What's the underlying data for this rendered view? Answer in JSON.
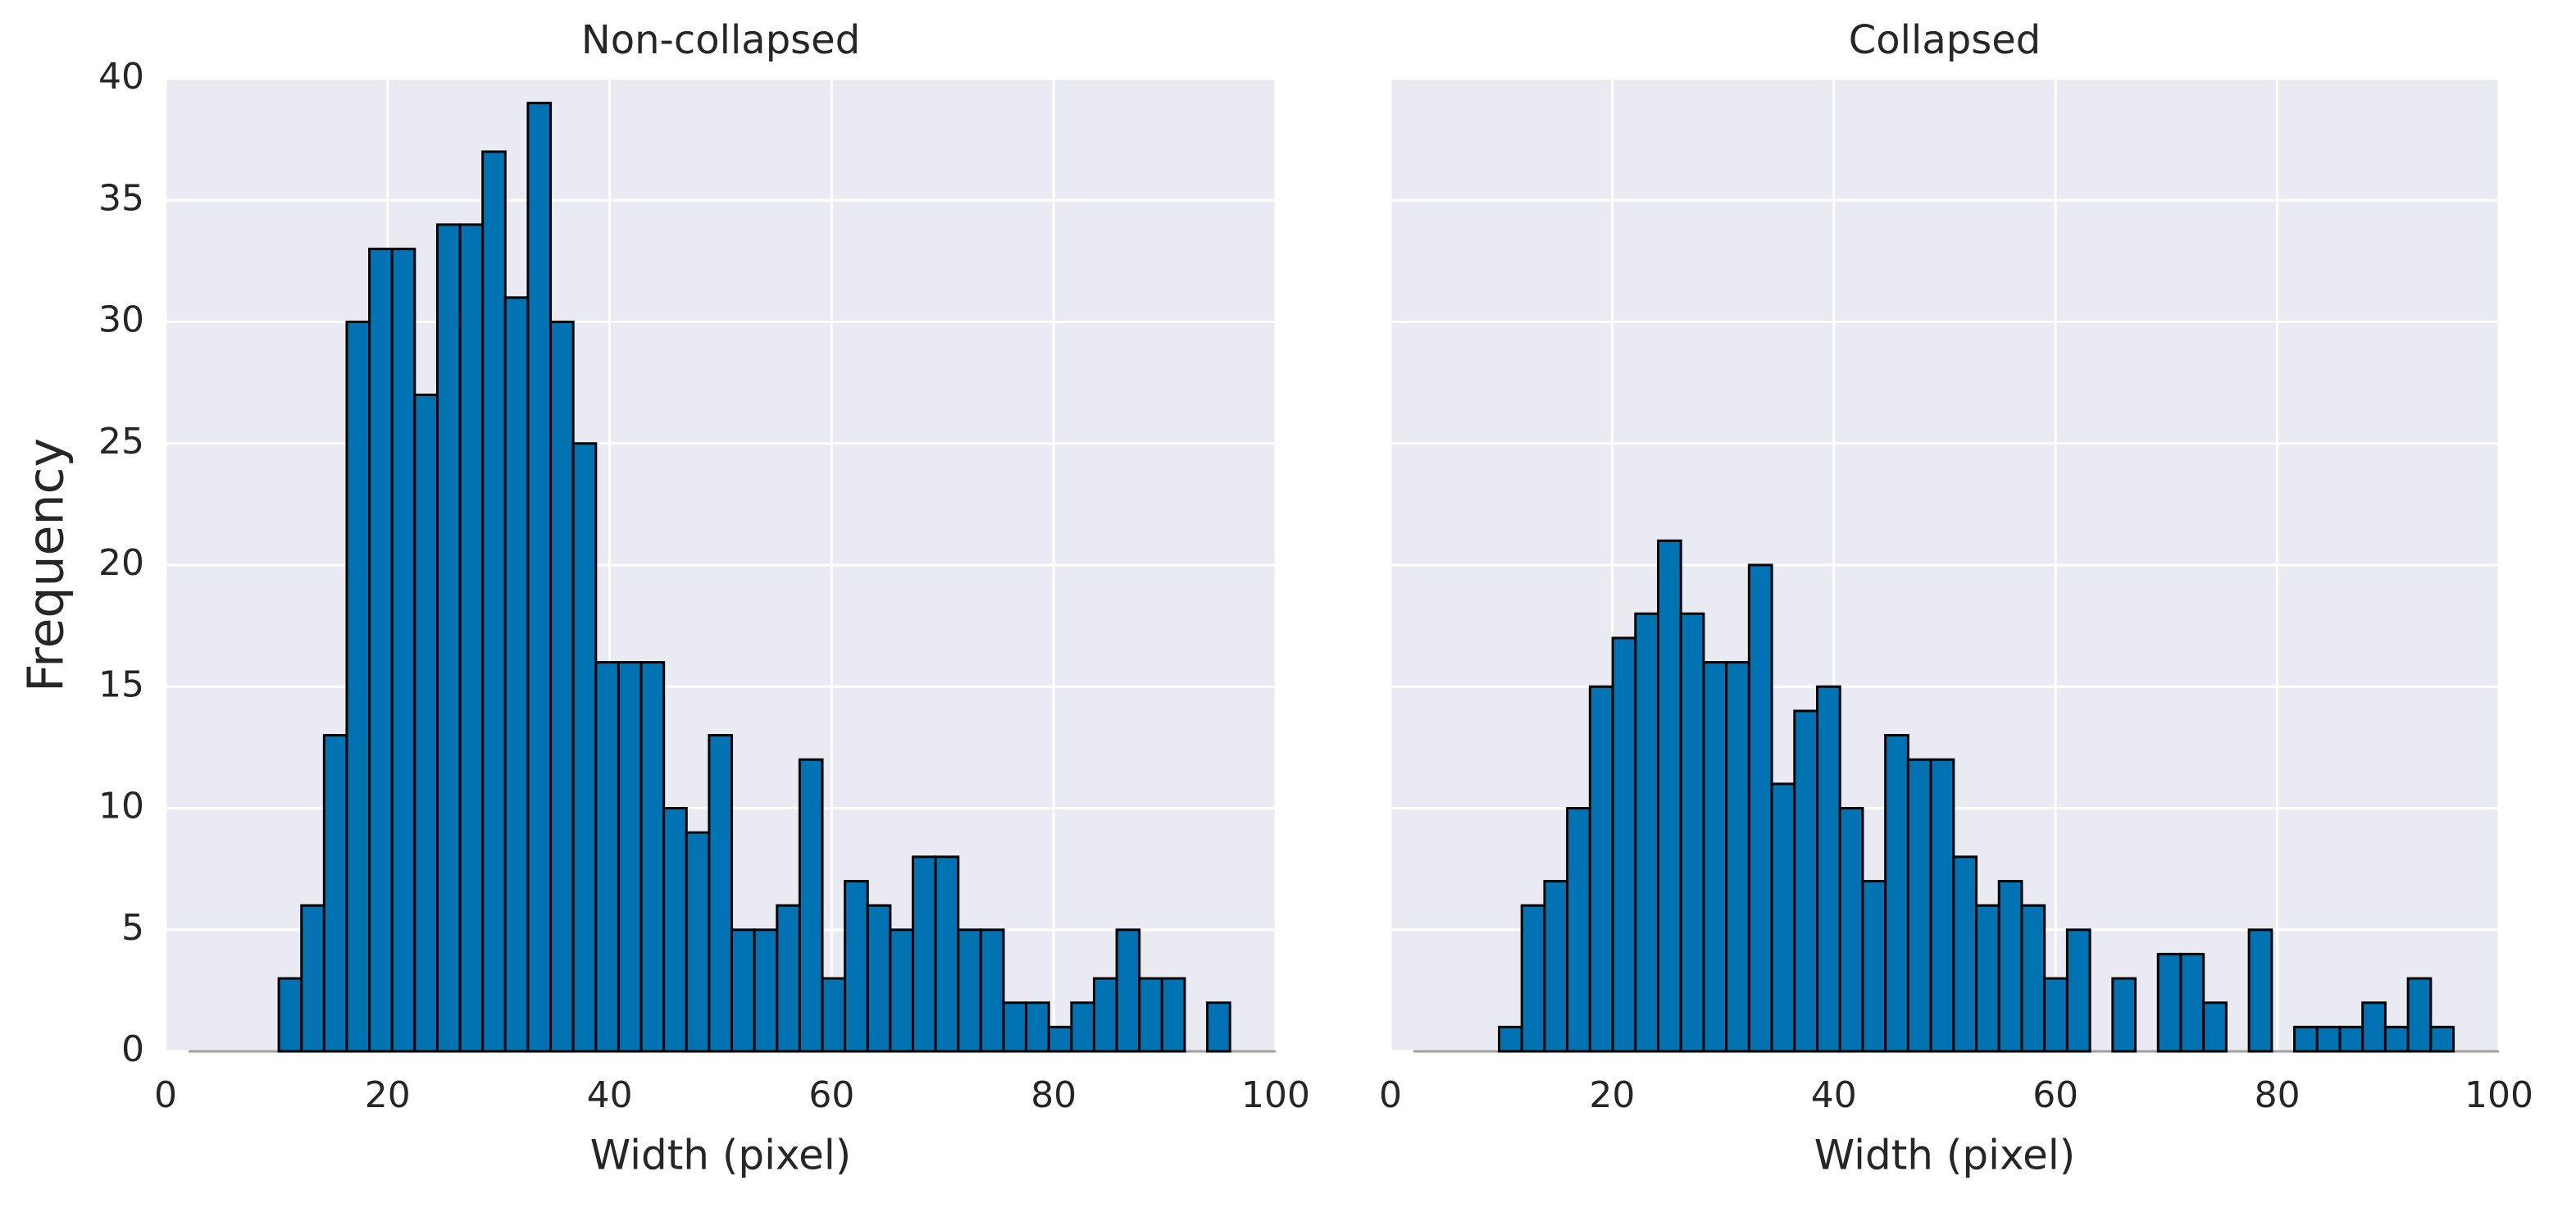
{
  "chart_data": [
    {
      "type": "histogram",
      "title": "Non-collapsed",
      "xlabel": "Width (pixel)",
      "ylabel": "Frequency",
      "bins": [
        10.2,
        12.24,
        14.28,
        16.32,
        18.36,
        20.4,
        22.44,
        24.48,
        26.52,
        28.56,
        30.6,
        32.64,
        34.68,
        36.72,
        38.76,
        40.8,
        42.84,
        44.88,
        46.92,
        48.96,
        51.0,
        53.04,
        55.08,
        57.12,
        59.16,
        61.2,
        63.24,
        65.28,
        67.32,
        69.36,
        71.4,
        73.44,
        75.48,
        77.52,
        79.56,
        81.6,
        83.64,
        85.68,
        87.72,
        89.76,
        91.8,
        93.84,
        95.88
      ],
      "values": [
        3,
        6,
        13,
        30,
        33,
        33,
        27,
        34,
        34,
        37,
        31,
        39,
        30,
        25,
        16,
        16,
        16,
        10,
        9,
        13,
        5,
        5,
        6,
        12,
        3,
        7,
        6,
        5,
        8,
        8,
        5,
        5,
        2,
        2,
        1,
        2,
        3,
        5,
        3,
        3,
        0,
        2
      ],
      "color": "#0173b2",
      "xlim": [
        0,
        100
      ],
      "ylim": [
        0,
        40
      ],
      "xticks": [
        0,
        20,
        40,
        60,
        80,
        100
      ],
      "yticks": [
        0,
        5,
        10,
        15,
        20,
        25,
        30,
        35,
        40
      ],
      "grid": true,
      "show_ytick_labels": true
    },
    {
      "type": "histogram",
      "title": "Collapsed",
      "xlabel": "Width (pixel)",
      "bins": [
        9.8,
        11.85,
        13.9,
        15.95,
        18.0,
        20.05,
        22.1,
        24.15,
        26.2,
        28.25,
        30.3,
        32.35,
        34.4,
        36.45,
        38.5,
        40.55,
        42.6,
        44.65,
        46.7,
        48.75,
        50.8,
        52.85,
        54.9,
        56.95,
        59.0,
        61.05,
        63.1,
        65.15,
        67.2,
        69.25,
        71.3,
        73.35,
        75.4,
        77.45,
        79.5,
        81.55,
        83.6,
        85.65,
        87.7,
        89.75,
        91.8,
        93.85,
        95.9
      ],
      "values": [
        1,
        6,
        7,
        10,
        15,
        17,
        18,
        21,
        18,
        16,
        16,
        20,
        11,
        14,
        15,
        10,
        7,
        13,
        12,
        12,
        8,
        6,
        7,
        6,
        3,
        5,
        0,
        3,
        0,
        4,
        4,
        2,
        0,
        5,
        0,
        1,
        1,
        1,
        2,
        1,
        3,
        1
      ],
      "color": "#0173b2",
      "xlim": [
        0,
        100
      ],
      "ylim": [
        0,
        40
      ],
      "xticks": [
        0,
        20,
        40,
        60,
        80,
        100
      ],
      "yticks": [
        0,
        5,
        10,
        15,
        20,
        25,
        30,
        35,
        40
      ],
      "grid": true,
      "show_ytick_labels": false
    }
  ]
}
